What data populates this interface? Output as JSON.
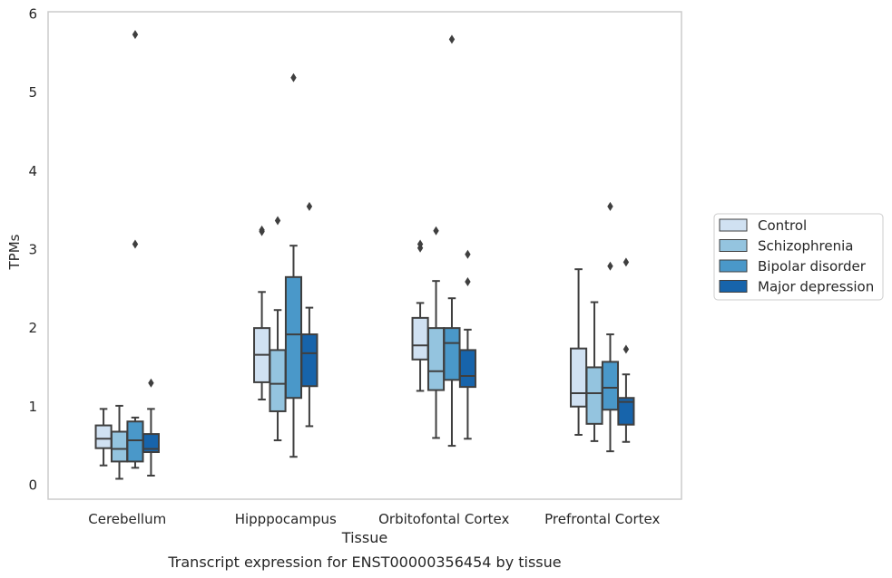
{
  "chart_data": {
    "type": "box",
    "title": "Transcript expression for ENST00000356454 by tissue",
    "xlabel": "Tissue",
    "ylabel": "TPMs",
    "ylim": [
      -0.18,
      6.03
    ],
    "yticks": [
      "0",
      "1",
      "2",
      "3",
      "4",
      "5",
      "6"
    ],
    "grid": true,
    "legend_position": "right",
    "categories": [
      "Cerebellum",
      "Hipppocampus",
      "Orbitofontal Cortex",
      "Prefrontal Cortex"
    ],
    "series": [
      {
        "name": "Control",
        "color": "#d0e1f2",
        "boxes": [
          {
            "whisker_low": 0.25,
            "q1": 0.47,
            "median": 0.59,
            "q3": 0.76,
            "whisker_high": 0.97,
            "outliers": []
          },
          {
            "whisker_low": 1.09,
            "q1": 1.31,
            "median": 1.66,
            "q3": 2.0,
            "whisker_high": 2.46,
            "outliers": [
              3.23,
              3.25
            ]
          },
          {
            "whisker_low": 1.2,
            "q1": 1.6,
            "median": 1.78,
            "q3": 2.13,
            "whisker_high": 2.32,
            "outliers": [
              3.02,
              3.07
            ]
          },
          {
            "whisker_low": 0.64,
            "q1": 1.0,
            "median": 1.17,
            "q3": 1.74,
            "whisker_high": 2.75,
            "outliers": []
          }
        ]
      },
      {
        "name": "Schizophrenia",
        "color": "#94c4df",
        "boxes": [
          {
            "whisker_low": 0.08,
            "q1": 0.3,
            "median": 0.46,
            "q3": 0.68,
            "whisker_high": 1.01,
            "outliers": []
          },
          {
            "whisker_low": 0.57,
            "q1": 0.94,
            "median": 1.29,
            "q3": 1.72,
            "whisker_high": 2.23,
            "outliers": [
              3.37
            ]
          },
          {
            "whisker_low": 0.6,
            "q1": 1.21,
            "median": 1.45,
            "q3": 2.0,
            "whisker_high": 2.6,
            "outliers": [
              3.24
            ]
          },
          {
            "whisker_low": 0.56,
            "q1": 0.78,
            "median": 1.17,
            "q3": 1.5,
            "whisker_high": 2.33,
            "outliers": []
          }
        ]
      },
      {
        "name": "Bipolar disorder",
        "color": "#4a98c9",
        "boxes": [
          {
            "whisker_low": 0.22,
            "q1": 0.3,
            "median": 0.57,
            "q3": 0.81,
            "whisker_high": 0.86,
            "outliers": [
              3.07,
              5.74
            ]
          },
          {
            "whisker_low": 0.36,
            "q1": 1.11,
            "median": 1.92,
            "q3": 2.65,
            "whisker_high": 3.05,
            "outliers": [
              5.19
            ]
          },
          {
            "whisker_low": 0.5,
            "q1": 1.34,
            "median": 1.81,
            "q3": 2.0,
            "whisker_high": 2.38,
            "outliers": [
              5.68
            ]
          },
          {
            "whisker_low": 0.43,
            "q1": 0.96,
            "median": 1.24,
            "q3": 1.57,
            "whisker_high": 1.92,
            "outliers": [
              2.79,
              3.55
            ]
          }
        ]
      },
      {
        "name": "Major depression",
        "color": "#1764ab",
        "boxes": [
          {
            "whisker_low": 0.12,
            "q1": 0.42,
            "median": 0.46,
            "q3": 0.65,
            "whisker_high": 0.97,
            "outliers": [
              1.3
            ]
          },
          {
            "whisker_low": 0.75,
            "q1": 1.26,
            "median": 1.68,
            "q3": 1.92,
            "whisker_high": 2.26,
            "outliers": [
              3.55
            ]
          },
          {
            "whisker_low": 0.59,
            "q1": 1.25,
            "median": 1.39,
            "q3": 1.72,
            "whisker_high": 1.98,
            "outliers": [
              2.59,
              2.94
            ]
          },
          {
            "whisker_low": 0.55,
            "q1": 0.77,
            "median": 1.06,
            "q3": 1.11,
            "whisker_high": 1.41,
            "outliers": [
              1.73,
              2.84
            ]
          }
        ]
      }
    ]
  }
}
